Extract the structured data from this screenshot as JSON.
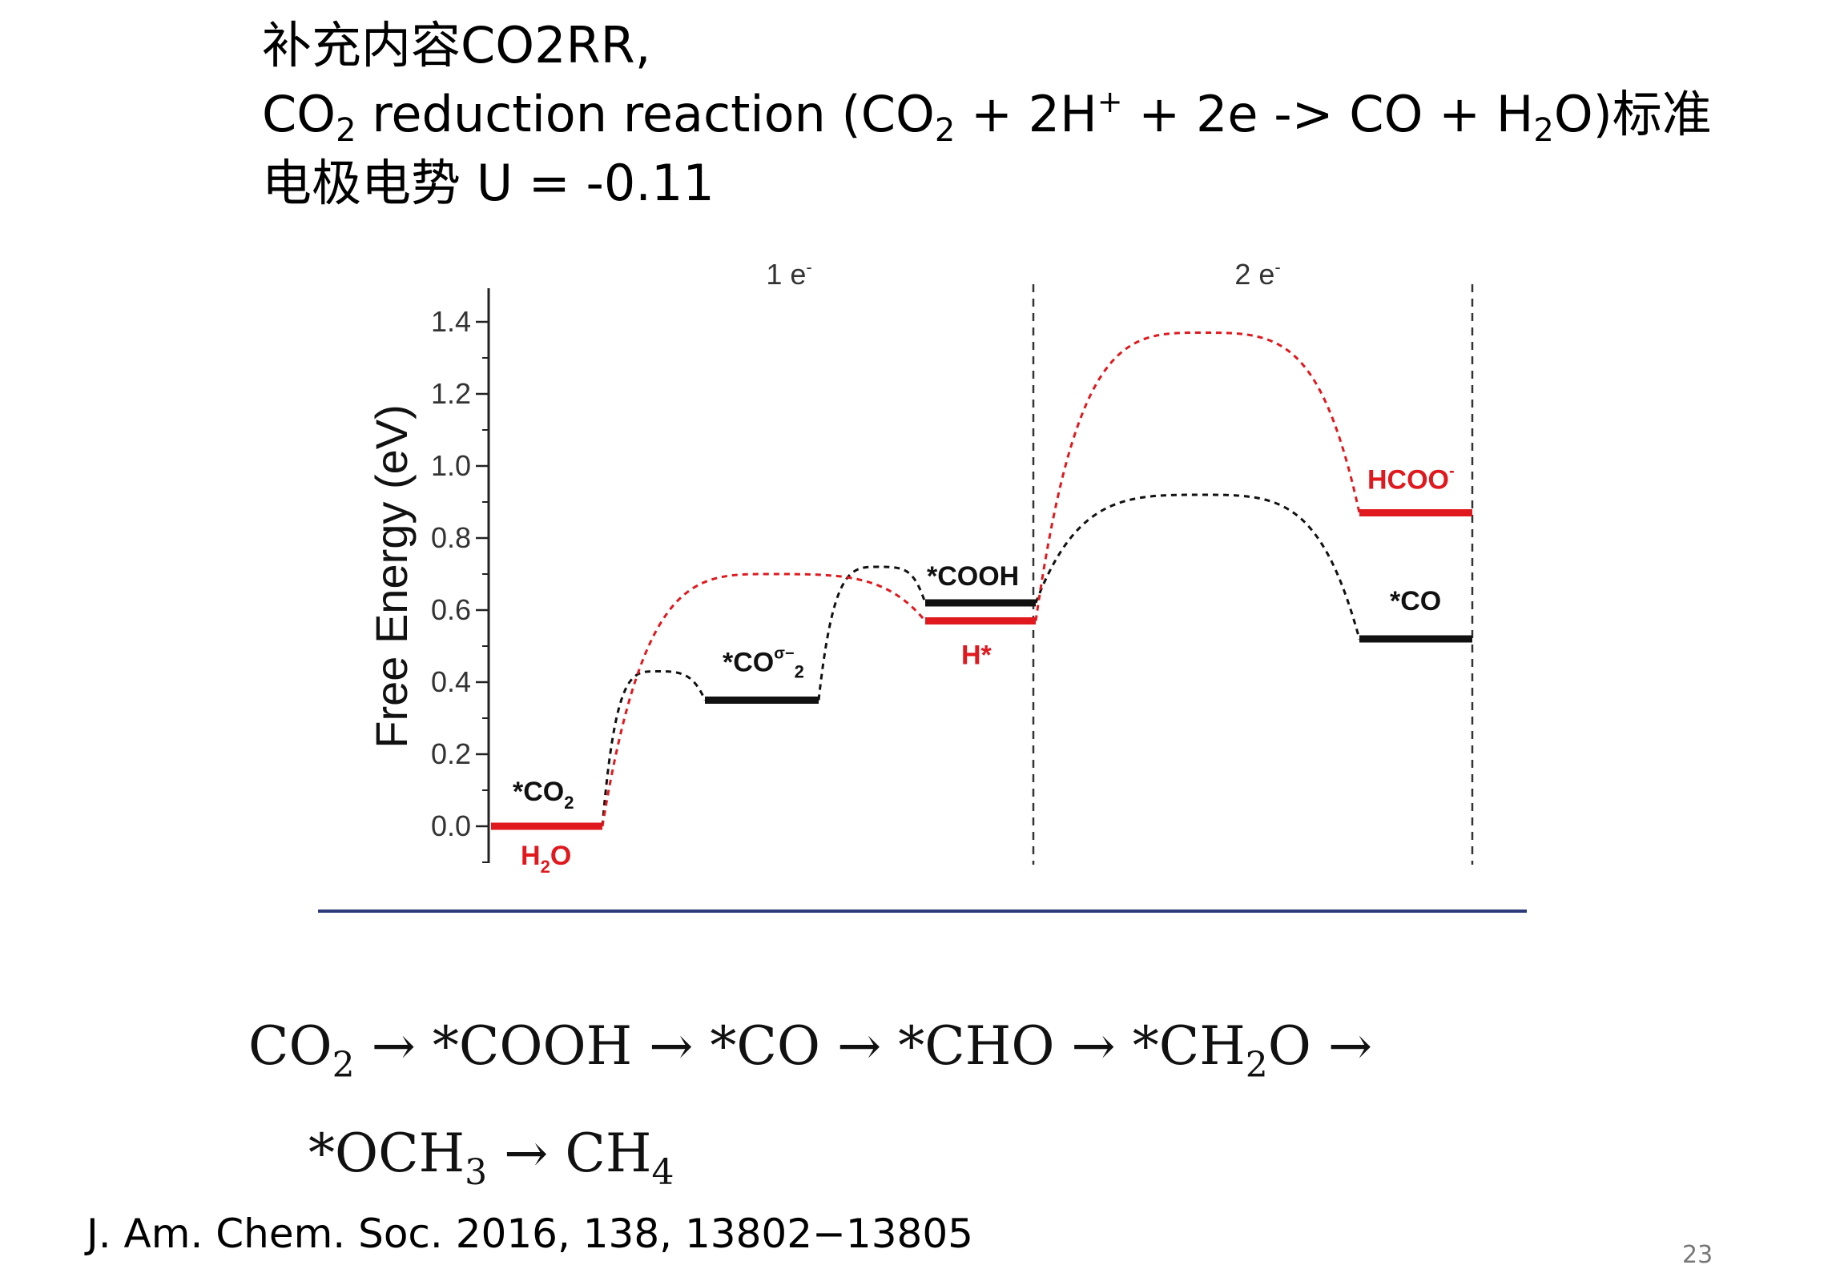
{
  "slide": {
    "title_line1": "补充内容CO2RR,",
    "title_line2": {
      "a": "CO",
      "b": "2",
      "c": " reduction reaction (CO",
      "d": "2",
      "e": " + 2H",
      "f": "+",
      "g": " + 2e -> CO + H",
      "h": "2",
      "i": "O)标准"
    },
    "title_line3": "电极电势 U = -0.11",
    "pathway_line1": {
      "a": "CO",
      "b": "2",
      "c": " → *COOH → *CO → *CHO → *CH",
      "d": "2",
      "e": "O →"
    },
    "pathway_line2": {
      "a": "*OCH",
      "b": "3",
      "c": " → CH",
      "d": "4"
    },
    "citation": "J. Am. Chem. Soc. 2016, 138, 13802−13805",
    "page_number": "23"
  },
  "chart_data": {
    "type": "line",
    "ylabel": "Free Energy (eV)",
    "ylim": [
      -0.1,
      1.5
    ],
    "yticks": [
      "0.0",
      "0.2",
      "0.4",
      "0.6",
      "0.8",
      "1.0",
      "1.2",
      "1.4"
    ],
    "ytick_values": [
      0.0,
      0.2,
      0.4,
      0.6,
      0.8,
      1.0,
      1.2,
      1.4
    ],
    "section_labels": [
      {
        "main": "1 e",
        "sup": "-"
      },
      {
        "main": "2 e",
        "sup": "-"
      }
    ],
    "colors": {
      "black": "#111111",
      "red": "#e0191e",
      "axis": "#222222"
    },
    "states": [
      {
        "series": "black",
        "energy": 0.0,
        "label": "*CO",
        "sub": "2",
        "sup": ""
      },
      {
        "series": "red",
        "energy": 0.0,
        "label": "H",
        "sub": "2",
        "sup": "",
        "tail": "O"
      },
      {
        "series": "black",
        "energy": 0.35,
        "label": "*CO",
        "sub": "2",
        "sup": "σ−"
      },
      {
        "series": "black",
        "energy": 0.62,
        "label": "*COOH",
        "sub": "",
        "sup": ""
      },
      {
        "series": "red",
        "energy": 0.57,
        "label": "H*",
        "sub": "",
        "sup": ""
      },
      {
        "series": "red",
        "energy": 0.87,
        "label": "HCOO",
        "sub": "",
        "sup": "-"
      },
      {
        "series": "black",
        "energy": 0.52,
        "label": "*CO",
        "sub": "",
        "sup": ""
      }
    ],
    "barriers": [
      {
        "series": "black",
        "peak": 0.43
      },
      {
        "series": "black",
        "peak": 0.72
      },
      {
        "series": "red",
        "peak": 0.7
      },
      {
        "series": "black",
        "peak": 0.92
      },
      {
        "series": "red",
        "peak": 1.37
      }
    ]
  }
}
